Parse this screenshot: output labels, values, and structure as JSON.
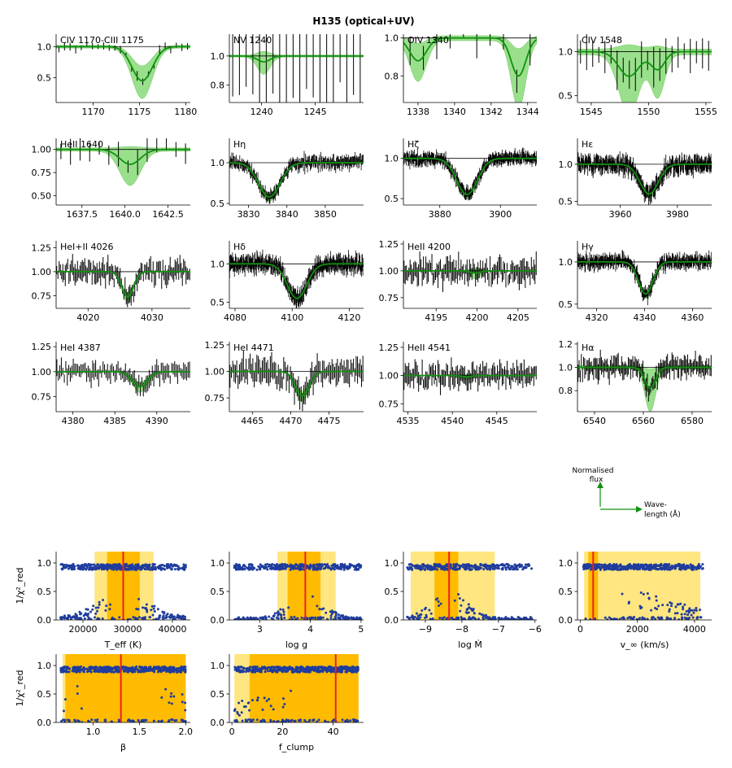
{
  "title": "H135 (optical+UV)",
  "colors": {
    "model": "#109010",
    "band": "#90dd80",
    "data": "#000000",
    "dots": "#1f3c9e",
    "best": "#ee2222",
    "inner": "#ffbb00",
    "outer": "#ffe680"
  },
  "legend": {
    "y_label": "Normalised flux",
    "x_label": "Wave-length (Å)"
  },
  "chart_data": [
    {
      "type": "line",
      "label": "CIV 1170-CIII 1175",
      "xlim": [
        1166,
        1180.5
      ],
      "ylim": [
        0.1,
        1.2
      ],
      "xticks": [
        1170,
        1175,
        1180
      ],
      "xtick_labels": [
        "1170",
        "1175",
        "1180"
      ],
      "yticks": [
        0.5,
        1.0
      ],
      "ytick_labels": [
        "0.5",
        "1.0"
      ],
      "lines": [
        {
          "c": 1175.3,
          "d": 0.55,
          "w": 1.1
        }
      ],
      "band": 0.1,
      "sigma": 0.06,
      "nspec": 24,
      "errbars": true,
      "errsz": 0.05
    },
    {
      "type": "line",
      "label": "NV 1240",
      "xlim": [
        1237.0,
        1249.5
      ],
      "ylim": [
        0.68,
        1.15
      ],
      "xticks": [
        1240,
        1245
      ],
      "xtick_labels": [
        "1240",
        "1245"
      ],
      "yticks": [
        0.8,
        1.0
      ],
      "ytick_labels": [
        "0.8",
        "1.0"
      ],
      "lines": [
        {
          "c": 1240.2,
          "d": 0.04,
          "w": 0.6
        }
      ],
      "band": 0.03,
      "sigma": 0.06,
      "nspec": 20,
      "errbars": true,
      "errsz": 0.3
    },
    {
      "type": "line",
      "label": "OIV 1340",
      "xlim": [
        1337.2,
        1344.5
      ],
      "ylim": [
        0.66,
        1.02
      ],
      "xticks": [
        1338,
        1340,
        1342,
        1344
      ],
      "xtick_labels": [
        "1338",
        "1340",
        "1342",
        "1344"
      ],
      "yticks": [
        0.8,
        1.0
      ],
      "ytick_labels": [
        "0.8",
        "1.0"
      ],
      "lines": [
        {
          "c": 1338.0,
          "d": 0.12,
          "w": 0.45
        },
        {
          "c": 1343.5,
          "d": 0.2,
          "w": 0.4
        }
      ],
      "band": 0.06,
      "sigma": 0.06,
      "nspec": 10,
      "errbars": true,
      "errsz": 0.08
    },
    {
      "type": "line",
      "label": "CIV 1548",
      "xlim": [
        1543.8,
        1555.5
      ],
      "ylim": [
        0.42,
        1.2
      ],
      "xticks": [
        1545,
        1550,
        1555
      ],
      "xtick_labels": [
        "1545",
        "1550",
        "1555"
      ],
      "yticks": [
        0.5,
        1.0
      ],
      "ytick_labels": [
        "0.5",
        "1.0"
      ],
      "lines": [
        {
          "c": 1548.3,
          "d": 0.28,
          "w": 0.9
        },
        {
          "c": 1550.8,
          "d": 0.2,
          "w": 0.6
        }
      ],
      "band": 0.15,
      "sigma": 0.08,
      "nspec": 22,
      "errbars": true,
      "errsz": 0.15
    },
    {
      "type": "line",
      "label": "HeII 1640",
      "xlim": [
        1636,
        1643.8
      ],
      "ylim": [
        0.4,
        1.12
      ],
      "xticks": [
        1637.5,
        1640.0,
        1642.5
      ],
      "xtick_labels": [
        "1637.5",
        "1640.0",
        "1642.5"
      ],
      "yticks": [
        0.5,
        0.75,
        1.0
      ],
      "ytick_labels": [
        "0.50",
        "0.75",
        "1.00"
      ],
      "lines": [
        {
          "c": 1640.3,
          "d": 0.16,
          "w": 0.6
        }
      ],
      "band": 0.08,
      "sigma": 0.1,
      "nspec": 14,
      "errbars": true,
      "errsz": 0.1
    },
    {
      "type": "line",
      "label": "Hη",
      "xlim": [
        3825,
        3860
      ],
      "ylim": [
        0.48,
        1.3
      ],
      "xticks": [
        3830,
        3840,
        3850
      ],
      "xtick_labels": [
        "3830",
        "3840",
        "3850"
      ],
      "yticks": [
        0.5,
        1.0
      ],
      "ytick_labels": [
        "0.5",
        "1.0"
      ],
      "lines": [
        {
          "c": 3835.4,
          "d": 0.42,
          "w": 2.8
        }
      ],
      "band": 0.02,
      "sigma": 0.05,
      "nspec": 200,
      "errbars": false
    },
    {
      "type": "line",
      "label": "Hζ",
      "xlim": [
        3868,
        3912
      ],
      "ylim": [
        0.42,
        1.25
      ],
      "xticks": [
        3880,
        3900
      ],
      "xtick_labels": [
        "3880",
        "3900"
      ],
      "yticks": [
        0.5,
        1.0
      ],
      "ytick_labels": [
        "0.5",
        "1.0"
      ],
      "lines": [
        {
          "c": 3889.0,
          "d": 0.45,
          "w": 3.4
        }
      ],
      "band": 0.02,
      "sigma": 0.05,
      "nspec": 260,
      "errbars": false
    },
    {
      "type": "line",
      "label": "Hε",
      "xlim": [
        3945,
        3992
      ],
      "ylim": [
        0.45,
        1.35
      ],
      "xticks": [
        3960,
        3980
      ],
      "xtick_labels": [
        "3960",
        "3980"
      ],
      "yticks": [
        0.5,
        1.0
      ],
      "ytick_labels": [
        "0.5",
        "1.0"
      ],
      "lines": [
        {
          "c": 3970.1,
          "d": 0.4,
          "w": 3.2
        }
      ],
      "band": 0.02,
      "sigma": 0.07,
      "nspec": 280,
      "errbars": false
    },
    {
      "type": "line",
      "label": "HeI+II 4026",
      "xlim": [
        4015,
        4036
      ],
      "ylim": [
        0.62,
        1.32
      ],
      "xticks": [
        4020,
        4030
      ],
      "xtick_labels": [
        "4020",
        "4030"
      ],
      "yticks": [
        0.75,
        1.0,
        1.25
      ],
      "ytick_labels": [
        "0.75",
        "1.00",
        "1.25"
      ],
      "lines": [
        {
          "c": 4026.2,
          "d": 0.26,
          "w": 0.9
        }
      ],
      "band": 0.02,
      "sigma": 0.07,
      "nspec": 110,
      "errbars": true,
      "errsz": 0.07
    },
    {
      "type": "line",
      "label": "Hδ",
      "xlim": [
        4078,
        4125
      ],
      "ylim": [
        0.42,
        1.3
      ],
      "xticks": [
        4080,
        4100,
        4120
      ],
      "xtick_labels": [
        "4080",
        "4100",
        "4120"
      ],
      "yticks": [
        0.5,
        1.0
      ],
      "ytick_labels": [
        "0.5",
        "1.0"
      ],
      "lines": [
        {
          "c": 4101.7,
          "d": 0.45,
          "w": 3.4
        }
      ],
      "band": 0.02,
      "sigma": 0.07,
      "nspec": 280,
      "errbars": false
    },
    {
      "type": "line",
      "label": "HeII 4200",
      "xlim": [
        4191,
        4207.3
      ],
      "ylim": [
        0.65,
        1.28
      ],
      "xticks": [
        4195,
        4200,
        4205
      ],
      "xtick_labels": [
        "4195",
        "4200",
        "4205"
      ],
      "yticks": [
        0.75,
        1.0,
        1.25
      ],
      "ytick_labels": [
        "0.75",
        "1.00",
        "1.25"
      ],
      "lines": [
        {
          "c": 4199.8,
          "d": 0.02,
          "w": 0.6
        }
      ],
      "band": 0.02,
      "sigma": 0.07,
      "nspec": 110,
      "errbars": true,
      "errsz": 0.07
    },
    {
      "type": "line",
      "label": "Hγ",
      "xlim": [
        4312,
        4368
      ],
      "ylim": [
        0.45,
        1.25
      ],
      "xticks": [
        4320,
        4340,
        4360
      ],
      "xtick_labels": [
        "4320",
        "4340",
        "4360"
      ],
      "yticks": [
        0.5,
        1.0
      ],
      "ytick_labels": [
        "0.5",
        "1.0"
      ],
      "lines": [
        {
          "c": 4340.5,
          "d": 0.38,
          "w": 3.0
        }
      ],
      "band": 0.02,
      "sigma": 0.05,
      "nspec": 280,
      "errbars": false
    },
    {
      "type": "line",
      "label": "HeI 4387",
      "xlim": [
        4378,
        4394
      ],
      "ylim": [
        0.6,
        1.3
      ],
      "xticks": [
        4380,
        4385,
        4390
      ],
      "xtick_labels": [
        "4380",
        "4385",
        "4390"
      ],
      "yticks": [
        0.75,
        1.0,
        1.25
      ],
      "ytick_labels": [
        "0.75",
        "1.00",
        "1.25"
      ],
      "lines": [
        {
          "c": 4388.0,
          "d": 0.15,
          "w": 0.9
        }
      ],
      "band": 0.02,
      "sigma": 0.06,
      "nspec": 90,
      "errbars": true,
      "errsz": 0.06
    },
    {
      "type": "line",
      "label": "HeI 4471",
      "xlim": [
        4462,
        4479.5
      ],
      "ylim": [
        0.62,
        1.28
      ],
      "xticks": [
        4465,
        4470,
        4475
      ],
      "xtick_labels": [
        "4465",
        "4470",
        "4475"
      ],
      "yticks": [
        0.75,
        1.0,
        1.25
      ],
      "ytick_labels": [
        "0.75",
        "1.00",
        "1.25"
      ],
      "lines": [
        {
          "c": 4471.5,
          "d": 0.23,
          "w": 0.9
        }
      ],
      "band": 0.02,
      "sigma": 0.07,
      "nspec": 100,
      "errbars": true,
      "errsz": 0.08
    },
    {
      "type": "line",
      "label": "HeII 4541",
      "xlim": [
        4534.5,
        4549.5
      ],
      "ylim": [
        0.68,
        1.3
      ],
      "xticks": [
        4535,
        4540,
        4545
      ],
      "xtick_labels": [
        "4535",
        "4540",
        "4545"
      ],
      "yticks": [
        0.75,
        1.0,
        1.25
      ],
      "ytick_labels": [
        "0.75",
        "1.00",
        "1.25"
      ],
      "lines": [
        {
          "c": 4541.6,
          "d": 0.01,
          "w": 0.6
        }
      ],
      "band": 0.01,
      "sigma": 0.06,
      "nspec": 110,
      "errbars": true,
      "errsz": 0.06
    },
    {
      "type": "line",
      "label": "Hα",
      "xlim": [
        6533,
        6588
      ],
      "ylim": [
        0.62,
        1.22
      ],
      "xticks": [
        6540,
        6560,
        6580
      ],
      "xtick_labels": [
        "6540",
        "6560",
        "6580"
      ],
      "yticks": [
        0.8,
        1.0,
        1.2
      ],
      "ytick_labels": [
        "0.8",
        "1.0",
        "1.2"
      ],
      "lines": [
        {
          "c": 6562.8,
          "d": 0.18,
          "w": 2.2
        }
      ],
      "band": 0.07,
      "sigma": 0.05,
      "nspec": 120,
      "errbars": true,
      "errsz": 0.06
    },
    {
      "type": "scatter",
      "xlabel": "T_eff (K)",
      "xlim": [
        14000,
        44000
      ],
      "ylim": [
        0.0,
        1.2
      ],
      "xticks": [
        20000,
        30000,
        40000
      ],
      "xtick_labels": [
        "20000",
        "30000",
        "40000"
      ],
      "yticks": [
        0.0,
        0.5,
        1.0
      ],
      "ytick_labels": [
        "0.0",
        "0.5",
        "1.0"
      ],
      "best": 29000,
      "inner": [
        25400,
        32700
      ],
      "outer": [
        22600,
        35800
      ],
      "xmin": 15000,
      "xmax": 43000,
      "sharp": 0.18
    },
    {
      "type": "scatter",
      "xlabel": "log g",
      "xlim": [
        2.4,
        5.05
      ],
      "ylim": [
        0.0,
        1.2
      ],
      "xticks": [
        3,
        4,
        5
      ],
      "xtick_labels": [
        "3",
        "4",
        "5"
      ],
      "yticks": [
        0.0,
        0.5,
        1.0
      ],
      "ytick_labels": [
        "0.0",
        "0.5",
        "1.0"
      ],
      "best": 3.9,
      "inner": [
        3.55,
        4.2
      ],
      "outer": [
        3.35,
        4.5
      ],
      "xmin": 2.5,
      "xmax": 5.0,
      "sharp": 0.12
    },
    {
      "type": "scatter",
      "xlabel": "log Ṁ",
      "xlim": [
        -9.6,
        -5.95
      ],
      "ylim": [
        0.0,
        1.2
      ],
      "xticks": [
        -9,
        -8,
        -7,
        -6
      ],
      "xtick_labels": [
        "−9",
        "−8",
        "−7",
        "−6"
      ],
      "yticks": [
        0.0,
        0.5,
        1.0
      ],
      "ytick_labels": [
        "0.0",
        "0.5",
        "1.0"
      ],
      "best": -8.35,
      "inner": [
        -8.75,
        -8.1
      ],
      "outer": [
        -9.4,
        -7.1
      ],
      "xmin": -9.5,
      "xmax": -6.05,
      "sharp": 0.12
    },
    {
      "type": "scatter",
      "xlabel": "v_∞ (km/s)",
      "xlim": [
        -100,
        4600
      ],
      "ylim": [
        0.0,
        1.2
      ],
      "xticks": [
        0,
        2000,
        4000
      ],
      "xtick_labels": [
        "0",
        "2000",
        "4000"
      ],
      "yticks": [
        0.0,
        0.5,
        1.0
      ],
      "ytick_labels": [
        "0.0",
        "0.5",
        "1.0"
      ],
      "best": 450,
      "inner": [
        280,
        620
      ],
      "outer": [
        130,
        4200
      ],
      "xmin": 100,
      "xmax": 4300,
      "sharp": 0.6
    },
    {
      "type": "scatter",
      "xlabel": "β",
      "xlim": [
        0.6,
        2.05
      ],
      "ylim": [
        0.0,
        1.2
      ],
      "xticks": [
        1.0,
        1.5,
        2.0
      ],
      "xtick_labels": [
        "1.0",
        "1.5",
        "2.0"
      ],
      "yticks": [
        0.0,
        0.5,
        1.0
      ],
      "ytick_labels": [
        "0.0",
        "0.5",
        "1.0"
      ],
      "best": 1.3,
      "inner": [
        0.7,
        2.0
      ],
      "outer": [
        0.67,
        2.0
      ],
      "xmin": 0.65,
      "xmax": 2.0,
      "sharp": 0.8
    },
    {
      "type": "scatter",
      "xlabel": "f_clump",
      "xlim": [
        -1,
        52
      ],
      "ylim": [
        0.0,
        1.2
      ],
      "xticks": [
        0,
        20,
        40
      ],
      "xtick_labels": [
        "0",
        "20",
        "40"
      ],
      "yticks": [
        0.0,
        0.5,
        1.0
      ],
      "ytick_labels": [
        "0.0",
        "0.5",
        "1.0"
      ],
      "best": 41,
      "inner": [
        7,
        50
      ],
      "outer": [
        1,
        50
      ],
      "xmin": 1,
      "xmax": 50,
      "sharp": 0.8
    }
  ]
}
